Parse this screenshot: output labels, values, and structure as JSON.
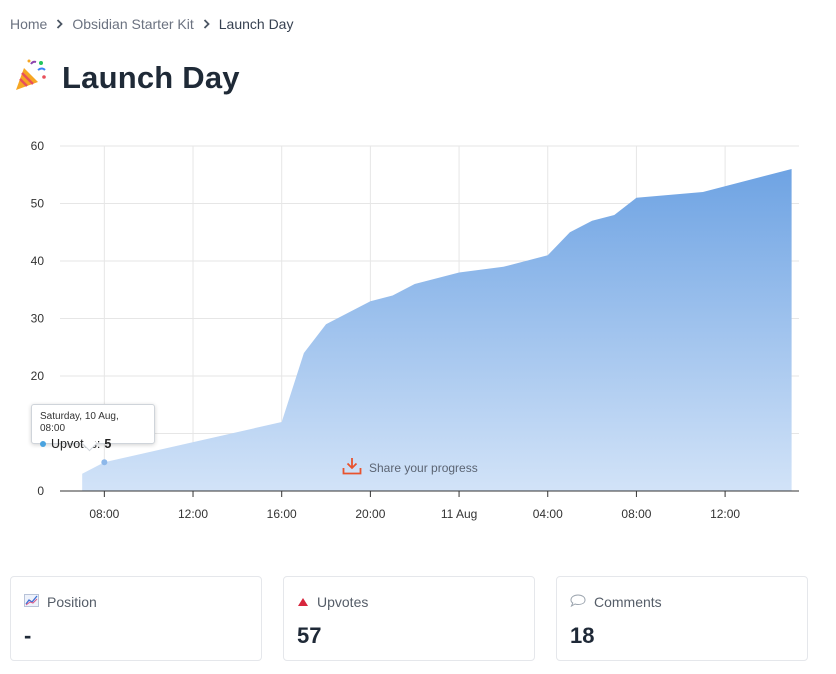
{
  "breadcrumb": {
    "home": "Home",
    "kit": "Obsidian Starter Kit",
    "current": "Launch Day"
  },
  "page": {
    "title": "Launch Day",
    "title_icon": "party-popper-icon"
  },
  "chart_data": {
    "type": "area",
    "series": [
      {
        "name": "Upvotes",
        "x": [
          "2019-08-10 07:00",
          "2019-08-10 08:00",
          "2019-08-10 16:00",
          "2019-08-10 17:00",
          "2019-08-10 18:00",
          "2019-08-10 19:00",
          "2019-08-10 20:00",
          "2019-08-10 21:00",
          "2019-08-10 22:00",
          "2019-08-11 00:00",
          "2019-08-11 02:00",
          "2019-08-11 04:00",
          "2019-08-11 05:00",
          "2019-08-11 06:00",
          "2019-08-11 07:00",
          "2019-08-11 08:00",
          "2019-08-11 11:00",
          "2019-08-11 15:00"
        ],
        "values": [
          3,
          5,
          12,
          24,
          29,
          31,
          33,
          34,
          36,
          38,
          39,
          41,
          45,
          47,
          48,
          51,
          52,
          56
        ]
      }
    ],
    "ylim": [
      0,
      60
    ],
    "xlim": [
      "2019-08-10 06:00",
      "2019-08-11 15:20"
    ],
    "y_ticks": [
      "0",
      "10",
      "20",
      "30",
      "40",
      "50",
      "60"
    ],
    "x_ticks": [
      "08:00",
      "12:00",
      "16:00",
      "20:00",
      "11 Aug",
      "04:00",
      "08:00",
      "12:00"
    ],
    "grid": true,
    "color": "#6ea3e3"
  },
  "tooltip": {
    "date": "Saturday, 10 Aug, 08:00",
    "label": "Upvotes:",
    "value": "5"
  },
  "share": {
    "label": "Share your progress"
  },
  "stats": [
    {
      "label": "Position",
      "value": "-",
      "icon": "chart-line-icon"
    },
    {
      "label": "Upvotes",
      "value": "57",
      "icon": "triangle-up-icon"
    },
    {
      "label": "Comments",
      "value": "18",
      "icon": "speech-bubble-icon"
    }
  ]
}
